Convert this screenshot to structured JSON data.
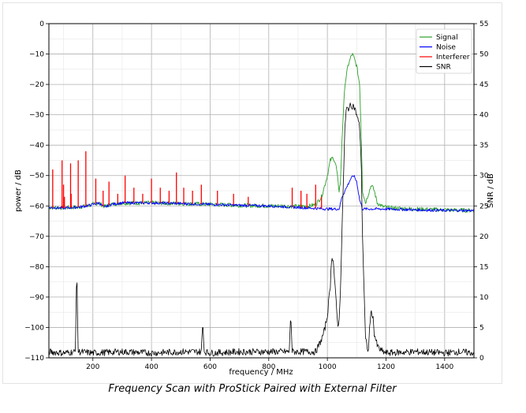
{
  "caption": "Frequency Scan with ProStick Paired with External Filter",
  "chart_data": {
    "type": "line",
    "title": "",
    "xlabel": "frequency / MHz",
    "ylabel": "power / dB",
    "y2label": "SNR / dB",
    "xlim": [
      50,
      1500
    ],
    "ylim": [
      -110,
      0
    ],
    "y2lim": [
      0,
      55
    ],
    "xticks": [
      200,
      400,
      600,
      800,
      1000,
      1200,
      1400
    ],
    "yticks": [
      0,
      -10,
      -20,
      -30,
      -40,
      -50,
      -60,
      -70,
      -80,
      -90,
      -100,
      -110
    ],
    "y2ticks": [
      55,
      50,
      45,
      40,
      35,
      30,
      25,
      20,
      15,
      10,
      5,
      0
    ],
    "grid": true,
    "legend_position": "top-right",
    "colors": {
      "signal": "#2ca02c",
      "noise": "#0000ff",
      "interferer": "#ff0000",
      "snr": "#000000"
    },
    "series": [
      {
        "name": "Signal",
        "axis": "left",
        "color": "#2ca02c",
        "x": [
          50,
          100,
          150,
          180,
          200,
          220,
          240,
          260,
          300,
          400,
          500,
          600,
          700,
          800,
          850,
          900,
          940,
          960,
          980,
          1000,
          1010,
          1020,
          1030,
          1040,
          1045,
          1050,
          1055,
          1060,
          1070,
          1080,
          1085,
          1090,
          1100,
          1110,
          1115,
          1120,
          1130,
          1140,
          1150,
          1160,
          1170,
          1190,
          1220,
          1300,
          1400,
          1500
        ],
        "y": [
          -60.5,
          -60.6,
          -60.4,
          -60,
          -59.5,
          -59,
          -60.2,
          -59.5,
          -59,
          -59,
          -59.2,
          -59.5,
          -59.8,
          -60,
          -60,
          -60.2,
          -60,
          -59.5,
          -57,
          -50,
          -45,
          -44,
          -47,
          -55,
          -52,
          -38,
          -28,
          -20,
          -14,
          -11,
          -10,
          -11,
          -14,
          -20,
          -35,
          -55,
          -59,
          -56,
          -53,
          -55,
          -59,
          -60.3,
          -60.7,
          -61,
          -61.3,
          -61.5
        ]
      },
      {
        "name": "Noise",
        "axis": "left",
        "color": "#0000ff",
        "x": [
          50,
          100,
          150,
          180,
          200,
          220,
          240,
          260,
          300,
          400,
          500,
          600,
          700,
          800,
          900,
          1000,
          1040,
          1050,
          1060,
          1070,
          1080,
          1090,
          1100,
          1110,
          1120,
          1140,
          1160,
          1200,
          1300,
          1400,
          1500
        ],
        "y": [
          -60.5,
          -60.7,
          -60.4,
          -60,
          -59.5,
          -59,
          -60.5,
          -59.5,
          -59,
          -59,
          -59.2,
          -59.5,
          -59.8,
          -60,
          -60.5,
          -61,
          -61,
          -57,
          -55,
          -53,
          -51,
          -50,
          -52,
          -58,
          -61,
          -61,
          -61,
          -61,
          -61.3,
          -61.5,
          -61.5
        ]
      },
      {
        "name": "Interferer",
        "axis": "left",
        "color": "#ff0000",
        "style": "spikes",
        "x": [
          63,
          95,
          100,
          103,
          124,
          126,
          150,
          176,
          210,
          235,
          255,
          285,
          310,
          340,
          370,
          400,
          430,
          460,
          485,
          510,
          540,
          570,
          625,
          680,
          730,
          880,
          910,
          930,
          960,
          980
        ],
        "y": [
          -48,
          -45,
          -53,
          -57,
          -46,
          -56,
          -45,
          -42,
          -51,
          -55,
          -52,
          -56,
          -50,
          -54,
          -56,
          -51,
          -54,
          -55,
          -49,
          -54,
          -55,
          -53,
          -55,
          -56,
          -57,
          -54,
          -55,
          -56,
          -53,
          -57
        ]
      },
      {
        "name": "SNR",
        "axis": "right",
        "color": "#000000",
        "x": [
          50,
          100,
          140,
          145,
          150,
          200,
          300,
          400,
          500,
          570,
          575,
          580,
          600,
          700,
          800,
          870,
          875,
          880,
          900,
          940,
          960,
          970,
          980,
          990,
          1000,
          1010,
          1015,
          1020,
          1030,
          1035,
          1040,
          1045,
          1050,
          1055,
          1060,
          1065,
          1070,
          1080,
          1090,
          1100,
          1110,
          1115,
          1120,
          1130,
          1140,
          1145,
          1150,
          1155,
          1160,
          1170,
          1180,
          1190,
          1200,
          1300,
          1400,
          1450,
          1500
        ],
        "y": [
          1,
          0.8,
          1,
          14.5,
          1,
          0.8,
          1,
          0.8,
          1,
          1,
          6,
          1,
          0.8,
          1,
          1,
          1,
          7.5,
          1,
          1,
          1,
          1,
          2,
          3,
          4.5,
          7,
          12,
          17,
          16,
          9,
          5.5,
          6,
          12,
          21,
          30,
          38,
          41,
          41,
          41.5,
          41.5,
          40,
          38,
          33,
          20,
          3,
          1,
          6,
          7.5,
          7,
          4,
          2,
          1.3,
          1,
          0.8,
          1,
          0.8,
          1,
          0.8
        ]
      }
    ]
  }
}
